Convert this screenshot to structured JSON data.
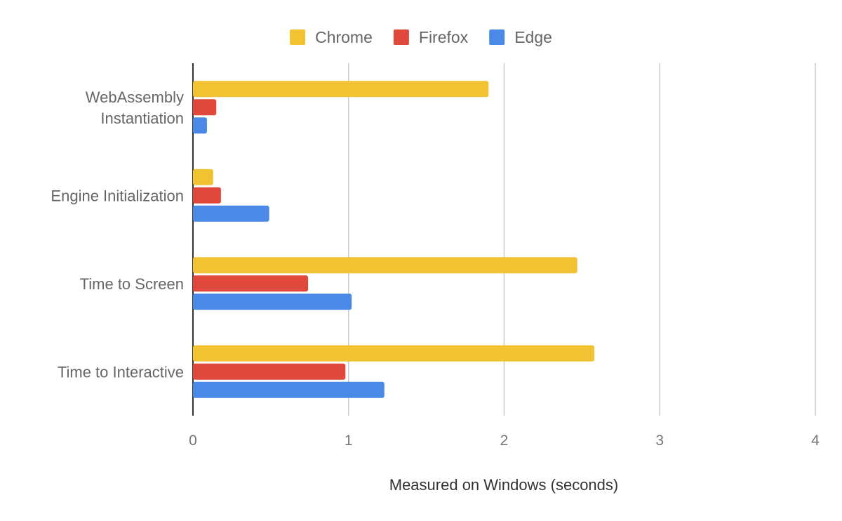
{
  "chart_data": {
    "type": "bar",
    "orientation": "horizontal",
    "title": "",
    "xlabel": "Measured on Windows (seconds)",
    "ylabel": "",
    "xlim": [
      0,
      4
    ],
    "xticks": [
      "0",
      "1",
      "2",
      "3",
      "4"
    ],
    "grid": true,
    "legend_position": "top",
    "categories": [
      [
        "WebAssembly",
        "Instantiation"
      ],
      [
        "Engine Initialization"
      ],
      [
        "Time to Screen"
      ],
      [
        "Time to Interactive"
      ]
    ],
    "series": [
      {
        "name": "Chrome",
        "color": "#f1c232",
        "values": [
          1.9,
          0.13,
          2.47,
          2.58
        ]
      },
      {
        "name": "Firefox",
        "color": "#e0483b",
        "values": [
          0.15,
          0.18,
          0.74,
          0.98
        ]
      },
      {
        "name": "Edge",
        "color": "#4a89e8",
        "values": [
          0.09,
          0.49,
          1.02,
          1.23
        ]
      }
    ]
  }
}
